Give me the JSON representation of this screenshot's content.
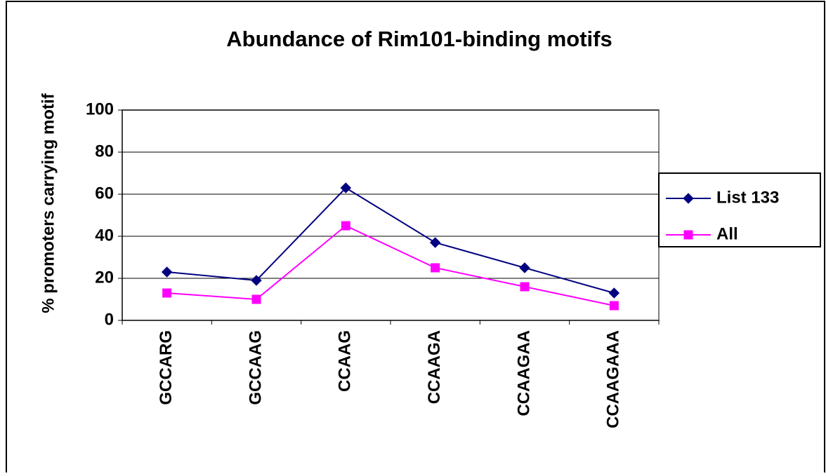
{
  "chart_data": {
    "type": "line",
    "title": "Abundance of Rim101-binding motifs",
    "y_label": "% promoters carrying motif",
    "categories": [
      "GCCARG",
      "GCCAAG",
      "CCAAG",
      "CCAAGA",
      "CCAAGAA",
      "CCAAGAAA"
    ],
    "series": [
      {
        "name": "List 133",
        "color": "#000080",
        "marker": "diamond",
        "values": [
          23,
          19,
          63,
          37,
          25,
          13
        ]
      },
      {
        "name": "All",
        "color": "#ff00ff",
        "marker": "square",
        "values": [
          13,
          10,
          45,
          25,
          16,
          7
        ]
      }
    ],
    "ylim": [
      0,
      100
    ],
    "yticks": [
      0,
      20,
      40,
      60,
      80,
      100
    ],
    "grid": true,
    "legend": "right"
  }
}
